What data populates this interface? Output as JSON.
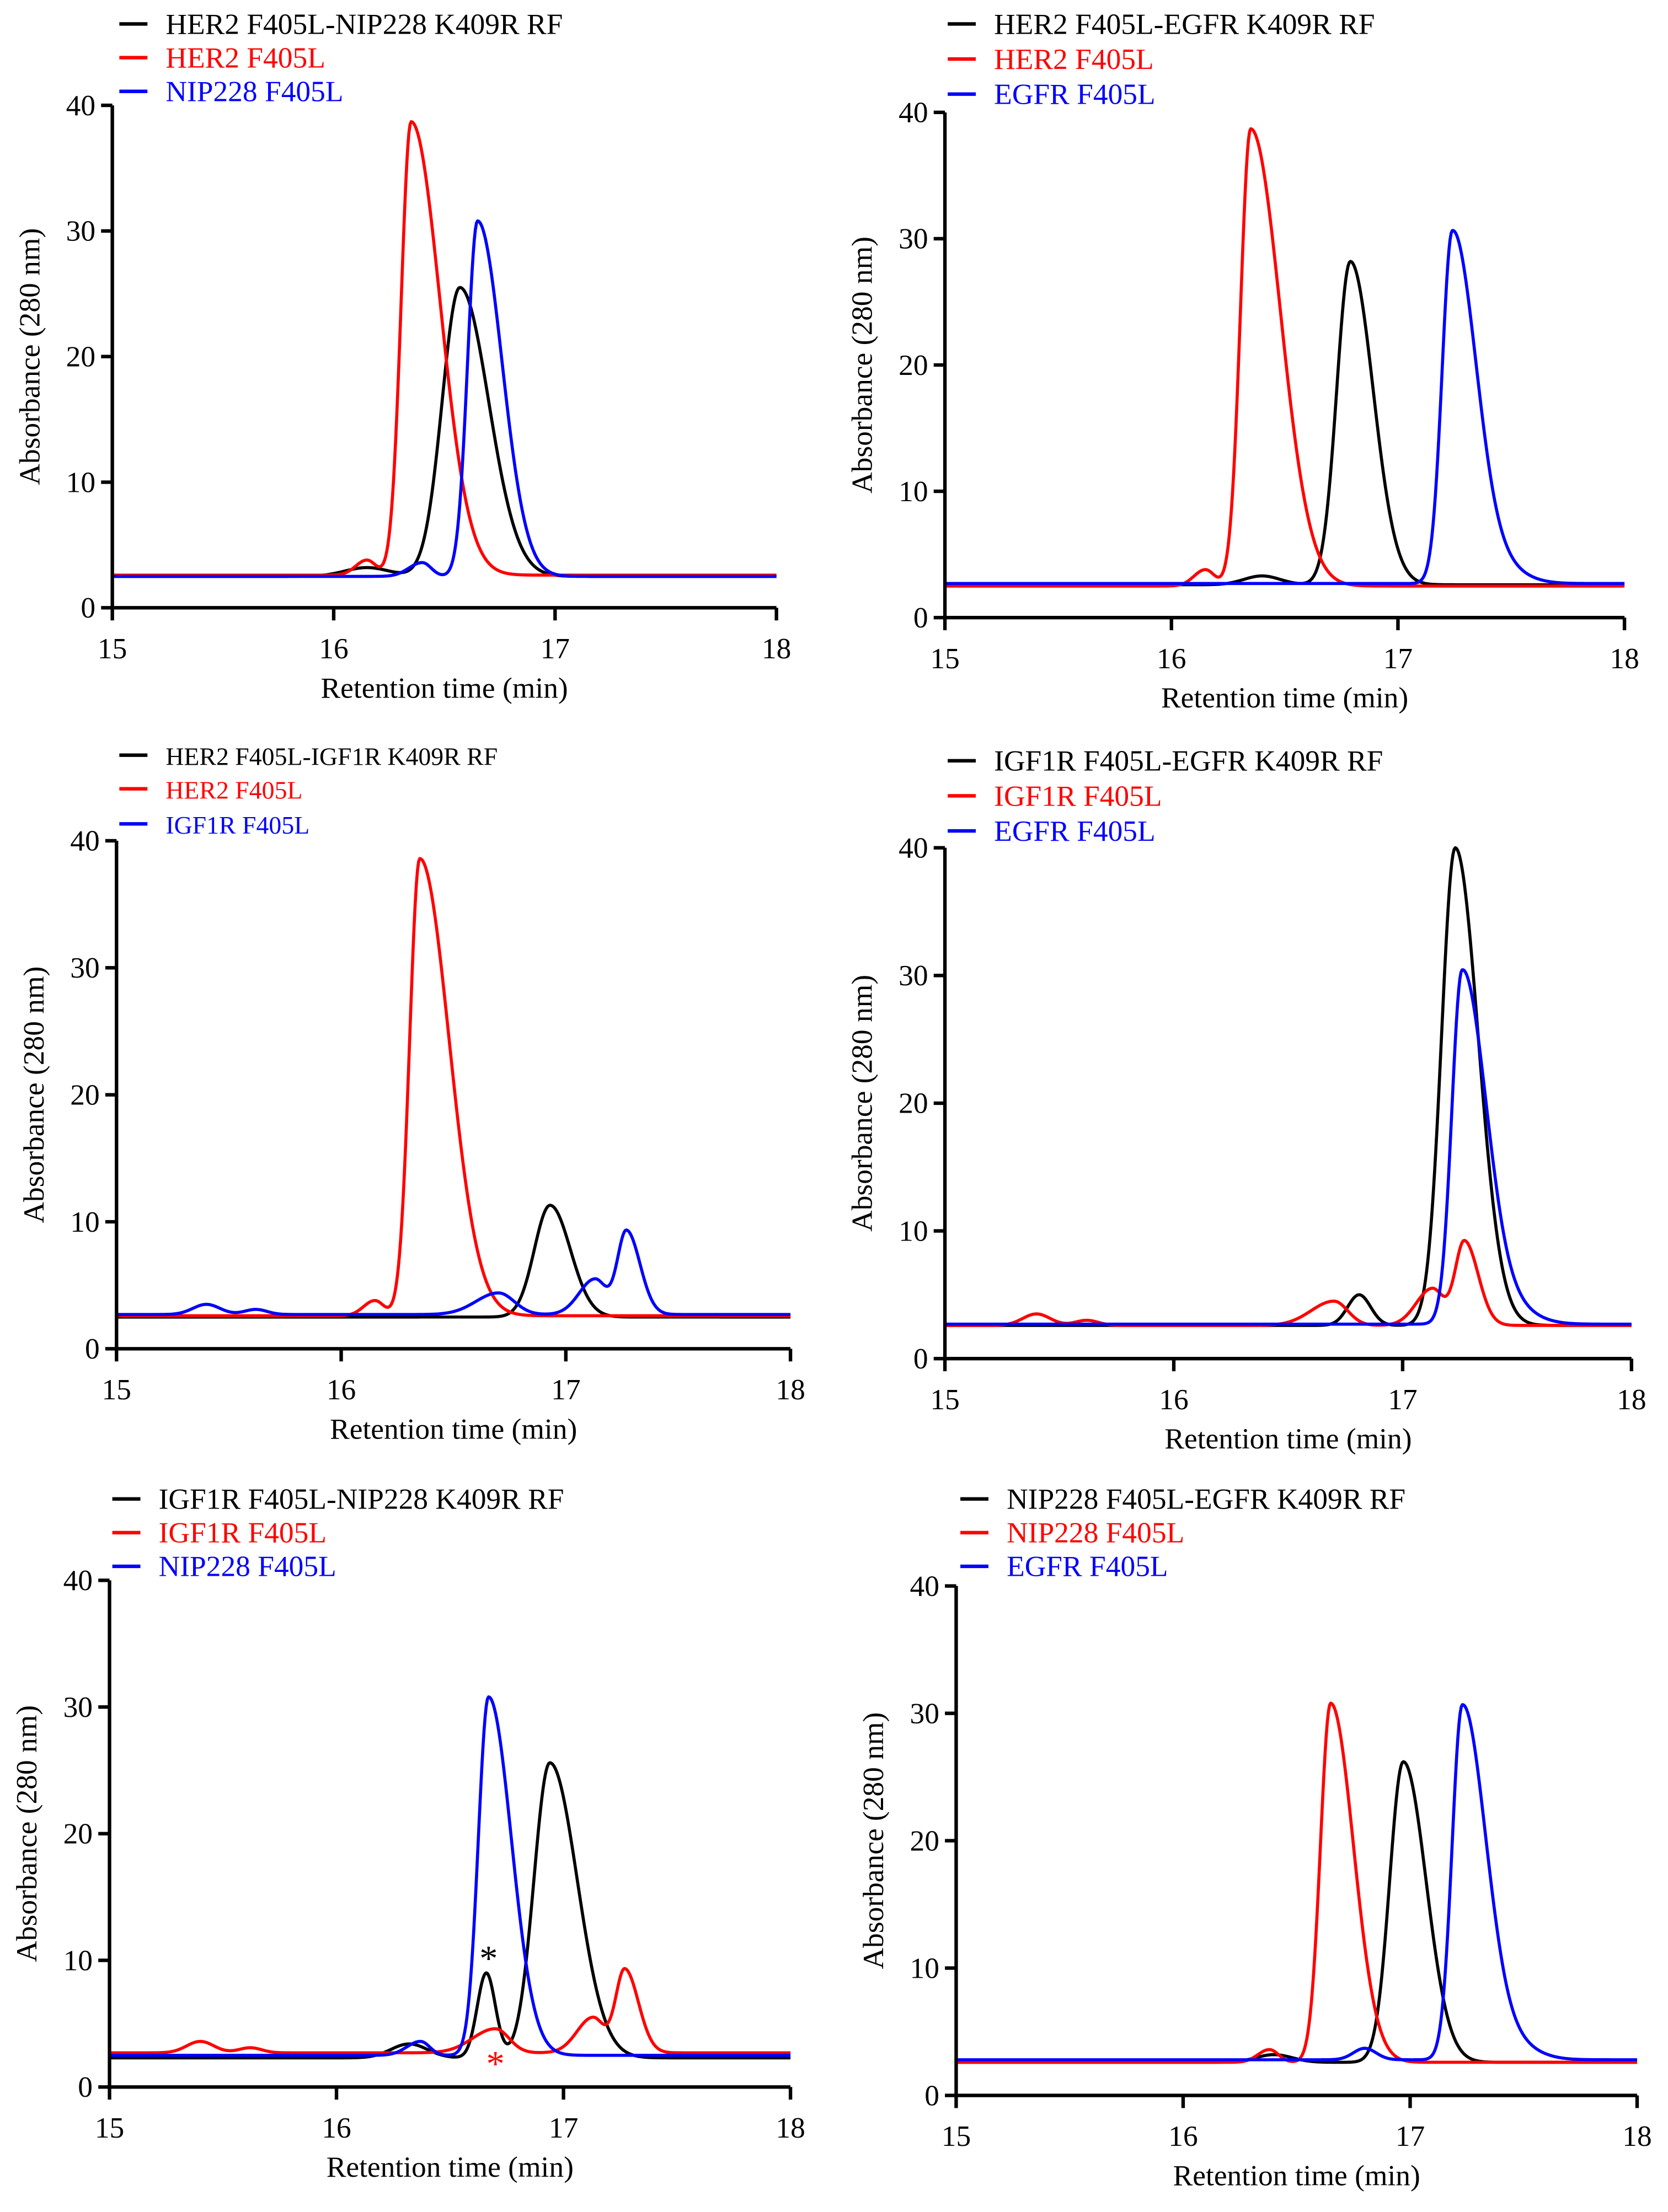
{
  "chart_data": [
    {
      "type": "line",
      "xlabel": "Retention time (min)",
      "ylabel": "Absorbance (280 nm)",
      "xlim": [
        15,
        18
      ],
      "ylim": [
        0,
        40
      ],
      "xticks": [
        15,
        16,
        17,
        18
      ],
      "yticks": [
        0,
        10,
        20,
        30,
        40
      ],
      "legend_position": "top-left",
      "series": [
        {
          "name": "HER2 F405L-NIP228 K409R RF",
          "color": "#000000",
          "baseline": 2.5,
          "peaks": [
            {
              "x": 16.57,
              "y": 25.5,
              "wl": 0.08,
              "wr": 0.13
            },
            {
              "x": 16.15,
              "y": 3.2,
              "wl": 0.1,
              "wr": 0.1
            }
          ]
        },
        {
          "name": "HER2 F405L",
          "color": "#ff0000",
          "baseline": 2.6,
          "peaks": [
            {
              "x": 16.35,
              "y": 38.7,
              "wl": 0.045,
              "wr": 0.13
            },
            {
              "x": 16.15,
              "y": 3.8,
              "wl": 0.05,
              "wr": 0.04
            }
          ]
        },
        {
          "name": "NIP228 F405L",
          "color": "#0000ff",
          "baseline": 2.5,
          "peaks": [
            {
              "x": 16.65,
              "y": 30.8,
              "wl": 0.045,
              "wr": 0.11
            },
            {
              "x": 16.4,
              "y": 3.6,
              "wl": 0.06,
              "wr": 0.04
            }
          ]
        }
      ]
    },
    {
      "type": "line",
      "xlabel": "Retention time (min)",
      "ylabel": "Absorbance (280 nm)",
      "xlim": [
        15,
        18
      ],
      "ylim": [
        0,
        40
      ],
      "xticks": [
        15,
        16,
        17,
        18
      ],
      "yticks": [
        0,
        10,
        20,
        30,
        40
      ],
      "legend_position": "top-left",
      "series": [
        {
          "name": "HER2 F405L-EGFR K409R RF",
          "color": "#000000",
          "baseline": 2.6,
          "peaks": [
            {
              "x": 16.79,
              "y": 28.2,
              "wl": 0.06,
              "wr": 0.1
            },
            {
              "x": 16.4,
              "y": 3.3,
              "wl": 0.08,
              "wr": 0.08
            }
          ]
        },
        {
          "name": "HER2 F405L",
          "color": "#ff0000",
          "baseline": 2.5,
          "peaks": [
            {
              "x": 16.35,
              "y": 38.7,
              "wl": 0.045,
              "wr": 0.13
            },
            {
              "x": 16.15,
              "y": 3.8,
              "wl": 0.05,
              "wr": 0.04
            }
          ]
        },
        {
          "name": "EGFR F405L",
          "color": "#0000ff",
          "baseline": 2.7,
          "peaks": [
            {
              "x": 17.24,
              "y": 30.4,
              "wl": 0.045,
              "wr": 0.1
            },
            {
              "x": 17.4,
              "y": 4.5,
              "wl": 0.08,
              "wr": 0.12
            }
          ]
        }
      ]
    },
    {
      "type": "line",
      "xlabel": "Retention time (min)",
      "ylabel": "Absorbance (280 nm)",
      "xlim": [
        15,
        18
      ],
      "ylim": [
        0,
        40
      ],
      "xticks": [
        15,
        16,
        17,
        18
      ],
      "yticks": [
        0,
        10,
        20,
        30,
        40
      ],
      "legend_position": "top-left",
      "series": [
        {
          "name": "HER2 F405L-IGF1R K409R RF",
          "color": "#000000",
          "baseline": 2.5,
          "peaks": [
            {
              "x": 16.93,
              "y": 11.3,
              "wl": 0.07,
              "wr": 0.09
            }
          ]
        },
        {
          "name": "HER2 F405L",
          "color": "#ff0000",
          "baseline": 2.6,
          "peaks": [
            {
              "x": 16.35,
              "y": 38.6,
              "wl": 0.045,
              "wr": 0.13
            },
            {
              "x": 16.15,
              "y": 3.8,
              "wl": 0.05,
              "wr": 0.04
            }
          ]
        },
        {
          "name": "IGF1R F405L",
          "color": "#0000ff",
          "baseline": 2.7,
          "peaks": [
            {
              "x": 17.27,
              "y": 9.3,
              "wl": 0.04,
              "wr": 0.06
            },
            {
              "x": 17.13,
              "y": 5.5,
              "wl": 0.07,
              "wr": 0.05
            },
            {
              "x": 16.7,
              "y": 4.4,
              "wl": 0.1,
              "wr": 0.07
            },
            {
              "x": 15.4,
              "y": 3.5,
              "wl": 0.06,
              "wr": 0.06
            },
            {
              "x": 15.62,
              "y": 3.1,
              "wl": 0.05,
              "wr": 0.05
            }
          ]
        }
      ]
    },
    {
      "type": "line",
      "xlabel": "Retention time (min)",
      "ylabel": "Absorbance (280 nm)",
      "xlim": [
        15,
        18
      ],
      "ylim": [
        0,
        40
      ],
      "xticks": [
        15,
        16,
        17,
        18
      ],
      "yticks": [
        0,
        10,
        20,
        30,
        40
      ],
      "legend_position": "top-left",
      "series": [
        {
          "name": "IGF1R F405L-EGFR K409R RF",
          "color": "#000000",
          "baseline": 2.6,
          "peaks": [
            {
              "x": 17.23,
              "y": 40,
              "wl": 0.06,
              "wr": 0.1
            },
            {
              "x": 16.81,
              "y": 5,
              "wl": 0.05,
              "wr": 0.05
            }
          ]
        },
        {
          "name": "IGF1R F405L",
          "color": "#ff0000",
          "baseline": 2.6,
          "peaks": [
            {
              "x": 17.27,
              "y": 9.2,
              "wl": 0.04,
              "wr": 0.06
            },
            {
              "x": 17.13,
              "y": 5.5,
              "wl": 0.07,
              "wr": 0.05
            },
            {
              "x": 16.7,
              "y": 4.5,
              "wl": 0.1,
              "wr": 0.06
            },
            {
              "x": 15.4,
              "y": 3.5,
              "wl": 0.06,
              "wr": 0.06
            },
            {
              "x": 15.62,
              "y": 3.0,
              "wl": 0.05,
              "wr": 0.05
            }
          ]
        },
        {
          "name": "EGFR F405L",
          "color": "#0000ff",
          "baseline": 2.7,
          "peaks": [
            {
              "x": 17.26,
              "y": 30.2,
              "wl": 0.045,
              "wr": 0.1
            },
            {
              "x": 17.42,
              "y": 4.5,
              "wl": 0.08,
              "wr": 0.12
            }
          ]
        }
      ]
    },
    {
      "type": "line",
      "xlabel": "Retention time (min)",
      "ylabel": "Absorbance (280 nm)",
      "xlim": [
        15,
        18
      ],
      "ylim": [
        0,
        40
      ],
      "xticks": [
        15,
        16,
        17,
        18
      ],
      "yticks": [
        0,
        10,
        20,
        30,
        40
      ],
      "legend_position": "top-left",
      "series": [
        {
          "name": "IGF1R F405L-NIP228 K409R RF",
          "color": "#000000",
          "baseline": 2.3,
          "peaks": [
            {
              "x": 16.94,
              "y": 25.6,
              "wl": 0.07,
              "wr": 0.12
            },
            {
              "x": 16.66,
              "y": 9.0,
              "wl": 0.04,
              "wr": 0.04
            },
            {
              "x": 16.32,
              "y": 3.4,
              "wl": 0.08,
              "wr": 0.08
            }
          ]
        },
        {
          "name": "IGF1R F405L",
          "color": "#ff0000",
          "baseline": 2.7,
          "peaks": [
            {
              "x": 17.27,
              "y": 9.3,
              "wl": 0.04,
              "wr": 0.06
            },
            {
              "x": 17.13,
              "y": 5.5,
              "wl": 0.07,
              "wr": 0.05
            },
            {
              "x": 16.7,
              "y": 4.6,
              "wl": 0.1,
              "wr": 0.06
            },
            {
              "x": 15.4,
              "y": 3.6,
              "wl": 0.06,
              "wr": 0.06
            },
            {
              "x": 15.62,
              "y": 3.1,
              "wl": 0.05,
              "wr": 0.05
            }
          ]
        },
        {
          "name": "NIP228 F405L",
          "color": "#0000ff",
          "baseline": 2.5,
          "peaks": [
            {
              "x": 16.67,
              "y": 30.8,
              "wl": 0.045,
              "wr": 0.1
            },
            {
              "x": 16.37,
              "y": 3.6,
              "wl": 0.06,
              "wr": 0.04
            }
          ]
        }
      ],
      "annotations": [
        {
          "text": "*",
          "x": 16.67,
          "y": 10.3,
          "color": "#000000"
        },
        {
          "text": "*",
          "x": 16.7,
          "y": 2.0,
          "color": "#ff0000"
        }
      ]
    },
    {
      "type": "line",
      "xlabel": "Retention time (min)",
      "ylabel": "Absorbance (280 nm)",
      "xlim": [
        15,
        18
      ],
      "ylim": [
        0,
        40
      ],
      "xticks": [
        15,
        16,
        17,
        18
      ],
      "yticks": [
        0,
        10,
        20,
        30,
        40
      ],
      "legend_position": "top-left",
      "series": [
        {
          "name": "NIP228 F405L-EGFR K409R RF",
          "color": "#000000",
          "baseline": 2.6,
          "peaks": [
            {
              "x": 16.97,
              "y": 26.2,
              "wl": 0.06,
              "wr": 0.1
            },
            {
              "x": 16.4,
              "y": 3.2,
              "wl": 0.08,
              "wr": 0.08
            }
          ]
        },
        {
          "name": "NIP228 F405L",
          "color": "#ff0000",
          "baseline": 2.6,
          "peaks": [
            {
              "x": 16.65,
              "y": 30.8,
              "wl": 0.045,
              "wr": 0.1
            },
            {
              "x": 16.38,
              "y": 3.6,
              "wl": 0.05,
              "wr": 0.04
            }
          ]
        },
        {
          "name": "EGFR F405L",
          "color": "#0000ff",
          "baseline": 2.8,
          "peaks": [
            {
              "x": 17.23,
              "y": 30.5,
              "wl": 0.045,
              "wr": 0.1
            },
            {
              "x": 16.8,
              "y": 3.7,
              "wl": 0.05,
              "wr": 0.05
            },
            {
              "x": 17.4,
              "y": 4.5,
              "wl": 0.08,
              "wr": 0.12
            }
          ]
        }
      ]
    }
  ]
}
